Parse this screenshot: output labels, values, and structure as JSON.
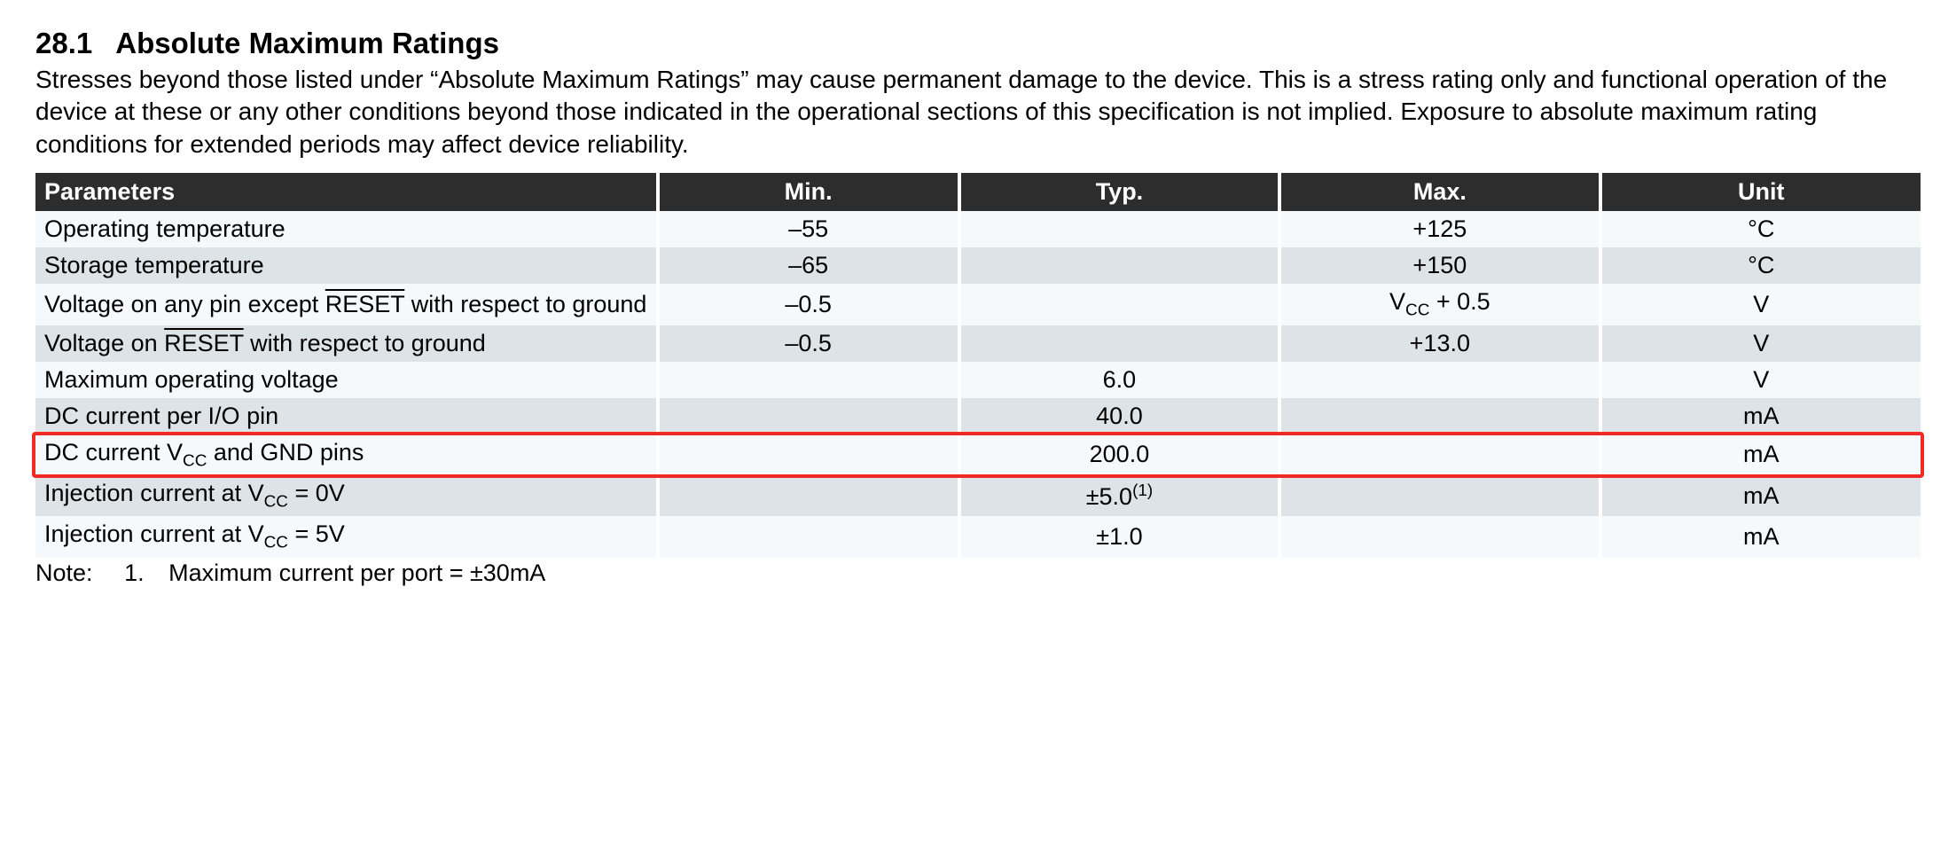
{
  "heading": {
    "number": "28.1",
    "title": "Absolute Maximum Ratings"
  },
  "intro": "Stresses beyond those listed under “Absolute Maximum Ratings” may cause permanent damage to the device. This is a stress rating only and functional operation of the device at these or any other conditions beyond those indicated in the operational sections of this specification is not implied. Exposure to absolute maximum rating conditions for extended periods may affect device reliability.",
  "table": {
    "type": "table",
    "header_bg": "#2d2d2d",
    "header_fg": "#ffffff",
    "row_odd_bg": "#f6f9fb",
    "row_even_bg": "#dde3e6",
    "gap_color": "#ffffff",
    "highlight_color": "#ef2b23",
    "highlighted_row_index": 6,
    "font_size_pt": 20,
    "columns": [
      {
        "key": "param",
        "label": "Parameters",
        "align": "left",
        "width_pct": 33
      },
      {
        "key": "min",
        "label": "Min.",
        "align": "center",
        "width_pct": 16
      },
      {
        "key": "typ",
        "label": "Typ.",
        "align": "center",
        "width_pct": 17
      },
      {
        "key": "max",
        "label": "Max.",
        "align": "center",
        "width_pct": 17
      },
      {
        "key": "unit",
        "label": "Unit",
        "align": "center",
        "width_pct": 17
      }
    ],
    "rows": [
      {
        "param_html": "Operating temperature",
        "min": "–55",
        "typ": "",
        "max": "+125",
        "unit": "°C"
      },
      {
        "param_html": "Storage temperature",
        "min": "–65",
        "typ": "",
        "max": "+150",
        "unit": "°C"
      },
      {
        "param_html": "Voltage on any pin except <span class=\"overline\">RESET</span> with respect to ground",
        "min": "–0.5",
        "typ": "",
        "max_html": "V<span class=\"subscript\">CC</span> + 0.5",
        "unit": "V"
      },
      {
        "param_html": "Voltage on <span class=\"overline\">RESET</span> with respect to ground",
        "min": "–0.5",
        "typ": "",
        "max": "+13.0",
        "unit": "V"
      },
      {
        "param_html": "Maximum operating voltage",
        "min": "",
        "typ": "6.0",
        "max": "",
        "unit": "V"
      },
      {
        "param_html": "DC current per I/O pin",
        "min": "",
        "typ": "40.0",
        "max": "",
        "unit": "mA"
      },
      {
        "param_html": "DC current V<span class=\"subscript\">CC</span> and GND pins",
        "min": "",
        "typ": "200.0",
        "max": "",
        "unit": "mA"
      },
      {
        "param_html": "Injection current at V<span class=\"subscript\">CC</span> = 0V",
        "min": "",
        "typ_html": "±5.0<span class=\"superscript\">(1)</span>",
        "max": "",
        "unit": "mA"
      },
      {
        "param_html": "Injection current at V<span class=\"subscript\">CC</span> = 5V",
        "min": "",
        "typ": "±1.0",
        "max": "",
        "unit": "mA"
      }
    ]
  },
  "note": {
    "label": "Note:",
    "number": "1.",
    "text": "Maximum current per port = ±30mA"
  }
}
